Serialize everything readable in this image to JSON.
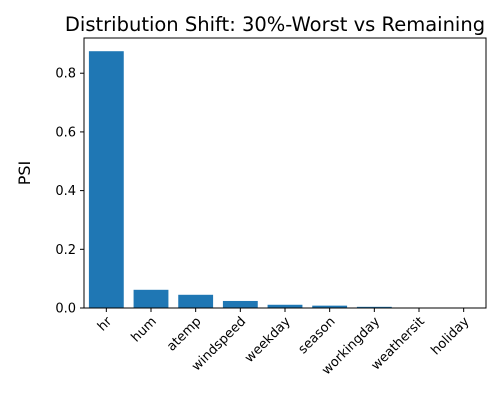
{
  "chart_data": {
    "type": "bar",
    "title": "Distribution Shift: 30%-Worst vs Remaining",
    "xlabel": "",
    "ylabel": "PSI",
    "categories": [
      "hr",
      "hum",
      "atemp",
      "windspeed",
      "weekday",
      "season",
      "workingday",
      "weathersit",
      "holiday"
    ],
    "values": [
      0.875,
      0.062,
      0.045,
      0.024,
      0.011,
      0.008,
      0.004,
      0.0015,
      0.001
    ],
    "ylim": [
      0,
      0.92
    ],
    "yticks": [
      0.0,
      0.2,
      0.4,
      0.6,
      0.8
    ],
    "ytick_labels": [
      "0.0",
      "0.2",
      "0.4",
      "0.6",
      "0.8"
    ],
    "bar_color": "#1f77b4",
    "grid": false,
    "legend": "none"
  }
}
